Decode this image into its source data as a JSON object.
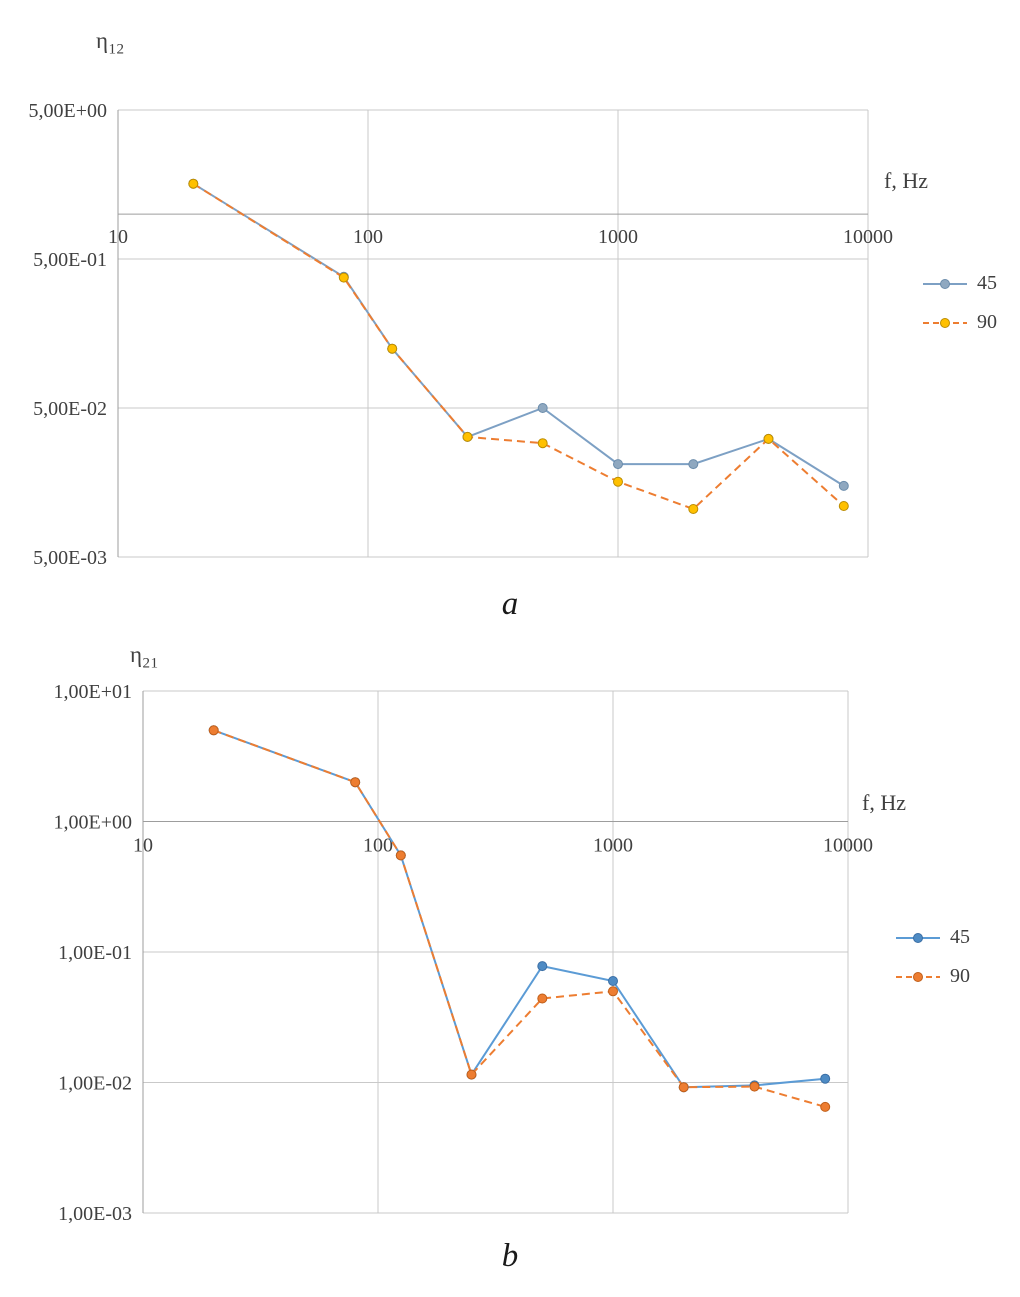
{
  "figure": {
    "background": "#ffffff",
    "grid_color": "#c9c9c9",
    "axis_color": "#9d9d9d"
  },
  "chart_data": [
    {
      "type": "line",
      "caption": "a",
      "title": "",
      "ylabel": {
        "base": "η",
        "sub": "12"
      },
      "xlabel": "f, Hz",
      "x_scale": "log",
      "y_scale": "log",
      "grid": true,
      "legend_position": "right",
      "xlim": [
        10,
        10000
      ],
      "ylim": [
        0.005,
        5
      ],
      "x_axis_cross_y": 1.0,
      "x_ticks": [
        {
          "value": 10,
          "label": "10"
        },
        {
          "value": 100,
          "label": "100"
        },
        {
          "value": 1000,
          "label": "1000"
        },
        {
          "value": 10000,
          "label": "10000"
        }
      ],
      "y_ticks": [
        {
          "value": 5,
          "label": "5,00E+00"
        },
        {
          "value": 0.5,
          "label": "5,00E-01"
        },
        {
          "value": 0.05,
          "label": "5,00E-02"
        },
        {
          "value": 0.005,
          "label": "5,00E-03"
        }
      ],
      "x": [
        20,
        80,
        125,
        250,
        500,
        1000,
        2000,
        4000,
        8000
      ],
      "series": [
        {
          "name": "45",
          "dash": false,
          "line_color": "#7da0c4",
          "marker_color": "#8fa8c0",
          "marker_stroke": "#6b8cab",
          "values": [
            1.6,
            0.38,
            0.125,
            0.032,
            0.05,
            0.021,
            0.021,
            0.031,
            0.015
          ]
        },
        {
          "name": "90",
          "dash": true,
          "line_color": "#ed7d31",
          "marker_color": "#ffc000",
          "marker_stroke": "#bc8c00",
          "values": [
            1.6,
            0.375,
            0.125,
            0.032,
            0.029,
            0.016,
            0.0105,
            0.031,
            0.011
          ]
        }
      ]
    },
    {
      "type": "line",
      "caption": "b",
      "title": "",
      "ylabel": {
        "base": "η",
        "sub": "21"
      },
      "xlabel": "f, Hz",
      "x_scale": "log",
      "y_scale": "log",
      "grid": true,
      "legend_position": "right",
      "xlim": [
        10,
        10000
      ],
      "ylim": [
        0.001,
        10
      ],
      "x_axis_cross_y": 1.0,
      "x_ticks": [
        {
          "value": 10,
          "label": "10"
        },
        {
          "value": 100,
          "label": "100"
        },
        {
          "value": 1000,
          "label": "1000"
        },
        {
          "value": 10000,
          "label": "10000"
        }
      ],
      "y_ticks": [
        {
          "value": 10,
          "label": "1,00E+01"
        },
        {
          "value": 1,
          "label": "1,00E+00"
        },
        {
          "value": 0.1,
          "label": "1,00E-01"
        },
        {
          "value": 0.01,
          "label": "1,00E-02"
        },
        {
          "value": 0.001,
          "label": "1,00E-03"
        }
      ],
      "x": [
        20,
        80,
        125,
        250,
        500,
        1000,
        2000,
        4000,
        8000
      ],
      "series": [
        {
          "name": "45",
          "dash": false,
          "line_color": "#5b9bd5",
          "marker_color": "#4e8bc4",
          "marker_stroke": "#3a6ea5",
          "values": [
            5,
            2,
            0.55,
            0.0115,
            0.078,
            0.06,
            0.0092,
            0.0095,
            0.0107
          ]
        },
        {
          "name": "90",
          "dash": true,
          "line_color": "#ed7d31",
          "marker_color": "#ed7d31",
          "marker_stroke": "#c05f1a",
          "values": [
            5,
            2,
            0.55,
            0.0115,
            0.044,
            0.05,
            0.0092,
            0.0093,
            0.0065
          ]
        }
      ]
    }
  ]
}
